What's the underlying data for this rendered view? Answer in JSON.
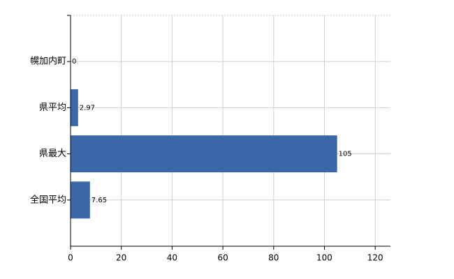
{
  "chart_data": {
    "type": "hbar",
    "categories": [
      "幌加内町",
      "県平均",
      "県最大",
      "全国平均"
    ],
    "values": [
      0,
      2.97,
      105,
      7.65
    ],
    "color": "#3a68a6",
    "xlim": [
      0,
      126
    ],
    "xticks": [
      0,
      20,
      40,
      60,
      80,
      100,
      120
    ],
    "grid": true
  }
}
